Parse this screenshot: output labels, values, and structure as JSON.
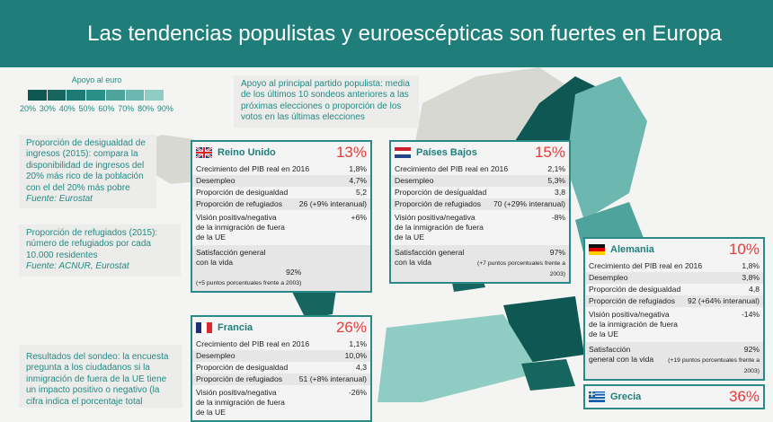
{
  "title": "Las tendencias populistas y euroescépticas son fuertes en Europa",
  "legend": {
    "title": "Apoyo al euro",
    "labels": [
      "20%",
      "30%",
      "40%",
      "50%",
      "60%",
      "70%",
      "80%",
      "90%"
    ],
    "colors": [
      "#0f5753",
      "#16665f",
      "#1d7a74",
      "#2a8f87",
      "#4ea39c",
      "#6cb8b0",
      "#8fcdc4"
    ]
  },
  "notes": {
    "populist": "Apoyo al principal partido populista: media de los últimos 10 sondeos anteriores a las próximas elecciones o proporción de los votos en las últimas elecciones",
    "inequality": "Proporción de desigualdad de ingresos (2015): compara la disponibilidad de ingresos del 20% más rico de la población con el del 20% más pobre",
    "inequality_source": "Fuente: Eurostat",
    "refugees": "Proporción de refugiados (2015): número de refugiados por cada 10.000 residentes",
    "refugees_source": "Fuente: ACNUR, Eurostat",
    "survey": "Resultados del sondeo: la encuesta pregunta a los ciudadanos si la inmigración de fuera de la UE tiene un impacto positivo o negativo (la cifra indica el porcentaje total"
  },
  "row_labels": {
    "gdp": "Crecimiento del PIB real en 2016",
    "unemp": "Desempleo",
    "ineq": "Proporción de desigualdad",
    "ref": "Proporción de refugiados",
    "imm": "Visión positiva/negativa de la inmigración de fuera de la UE",
    "sat": "Satisfacción general con la vida"
  },
  "countries": {
    "uk": {
      "name": "Reino Unido",
      "pct": "13%",
      "gdp": "1,8%",
      "unemp": "4,7%",
      "ineq": "5,2",
      "ref": "26 (+9% interanual)",
      "imm": "+6%",
      "sat": "92%",
      "sat_sub": "(+5 puntos porcentuales frente a 2003)"
    },
    "nl": {
      "name": "Países Bajos",
      "pct": "15%",
      "gdp": "2,1%",
      "unemp": "5,3%",
      "ineq": "3,8",
      "ref": "70 (+29% interanual)",
      "imm": "-8%",
      "sat": "97%",
      "sat_sub": "(+7 puntos porcentuales frente a 2003)"
    },
    "de": {
      "name": "Alemania",
      "pct": "10%",
      "gdp": "1,8%",
      "unemp": "3,8%",
      "ineq": "4,8",
      "ref": "92 (+64% interanual)",
      "imm": "-14%",
      "sat": "92%",
      "sat_sub": "(+19 puntos porcentuales frente a 2003)"
    },
    "fr": {
      "name": "Francia",
      "pct": "26%",
      "gdp": "1,1%",
      "unemp": "10,0%",
      "ineq": "4,3",
      "ref": "51 (+8% interanual)",
      "imm": "-26%"
    },
    "gr": {
      "name": "Grecia",
      "pct": "36%"
    }
  }
}
